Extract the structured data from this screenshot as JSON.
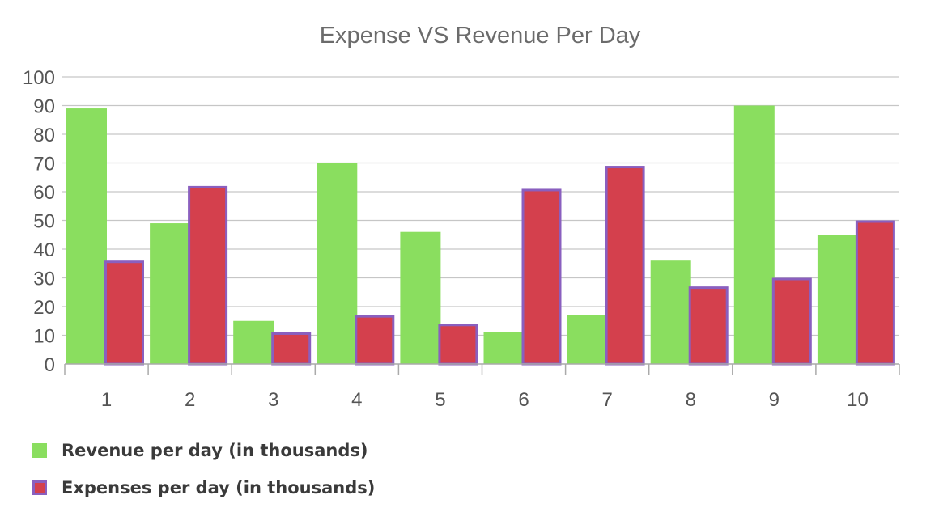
{
  "chart_data": {
    "type": "bar",
    "title": "Expense VS Revenue Per Day",
    "xlabel": "",
    "ylabel": "",
    "categories": [
      "1",
      "2",
      "3",
      "4",
      "5",
      "6",
      "7",
      "8",
      "9",
      "10"
    ],
    "ylim": [
      0,
      100
    ],
    "yticks": [
      0,
      10,
      20,
      30,
      40,
      50,
      60,
      70,
      80,
      90,
      100
    ],
    "grid": true,
    "legend_position": "bottom-left",
    "series": [
      {
        "name": "Revenue per day (in thousands)",
        "color": "#8ade5f",
        "values": [
          89,
          49,
          15,
          70,
          46,
          11,
          17,
          36,
          90,
          45
        ]
      },
      {
        "name": "Expenses per day (in thousands)",
        "color": "#d4404d",
        "border_color": "#8a5fbf",
        "values": [
          36,
          62,
          11,
          17,
          14,
          61,
          69,
          27,
          30,
          50
        ]
      }
    ]
  }
}
